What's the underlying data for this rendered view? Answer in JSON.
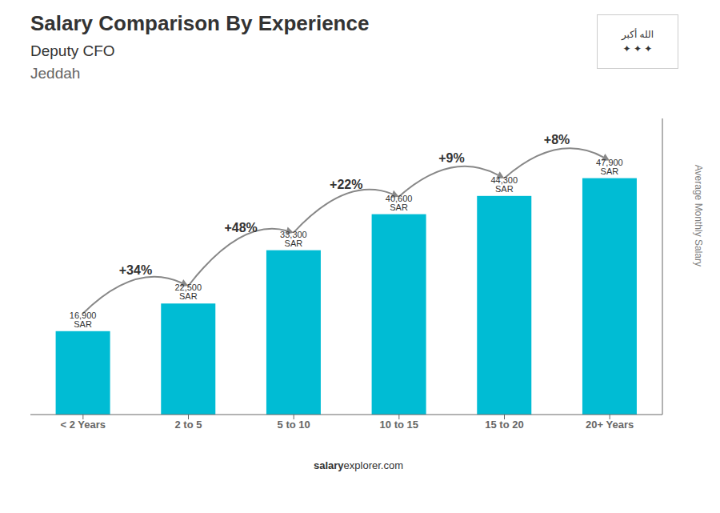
{
  "chart_data": {
    "type": "bar",
    "title": "Salary Comparison By Experience",
    "subtitle": "Deputy CFO",
    "city": "Jeddah",
    "categories": [
      "< 2 Years",
      "2 to 5",
      "5 to 10",
      "10 to 15",
      "15 to 20",
      "20+ Years"
    ],
    "values": [
      16900,
      22500,
      33300,
      40600,
      44300,
      47900
    ],
    "value_labels": [
      "16,900 SAR",
      "22,500 SAR",
      "33,300 SAR",
      "40,600 SAR",
      "44,300 SAR",
      "47,900 SAR"
    ],
    "data_labels": true,
    "change_labels": [
      "+34%",
      "+48%",
      "+22%",
      "+9%",
      "+8%"
    ],
    "color": "#00BCD4",
    "ylabel": "Average Monthly Salary",
    "ylim": [
      0,
      60000
    ],
    "yticks": [],
    "tick_labels": "x",
    "grid": false,
    "footer": [
      "salary",
      "explorer.com"
    ],
    "flag_text": [
      "الله أكبر",
      "✦ ✦ ✦"
    ]
  }
}
